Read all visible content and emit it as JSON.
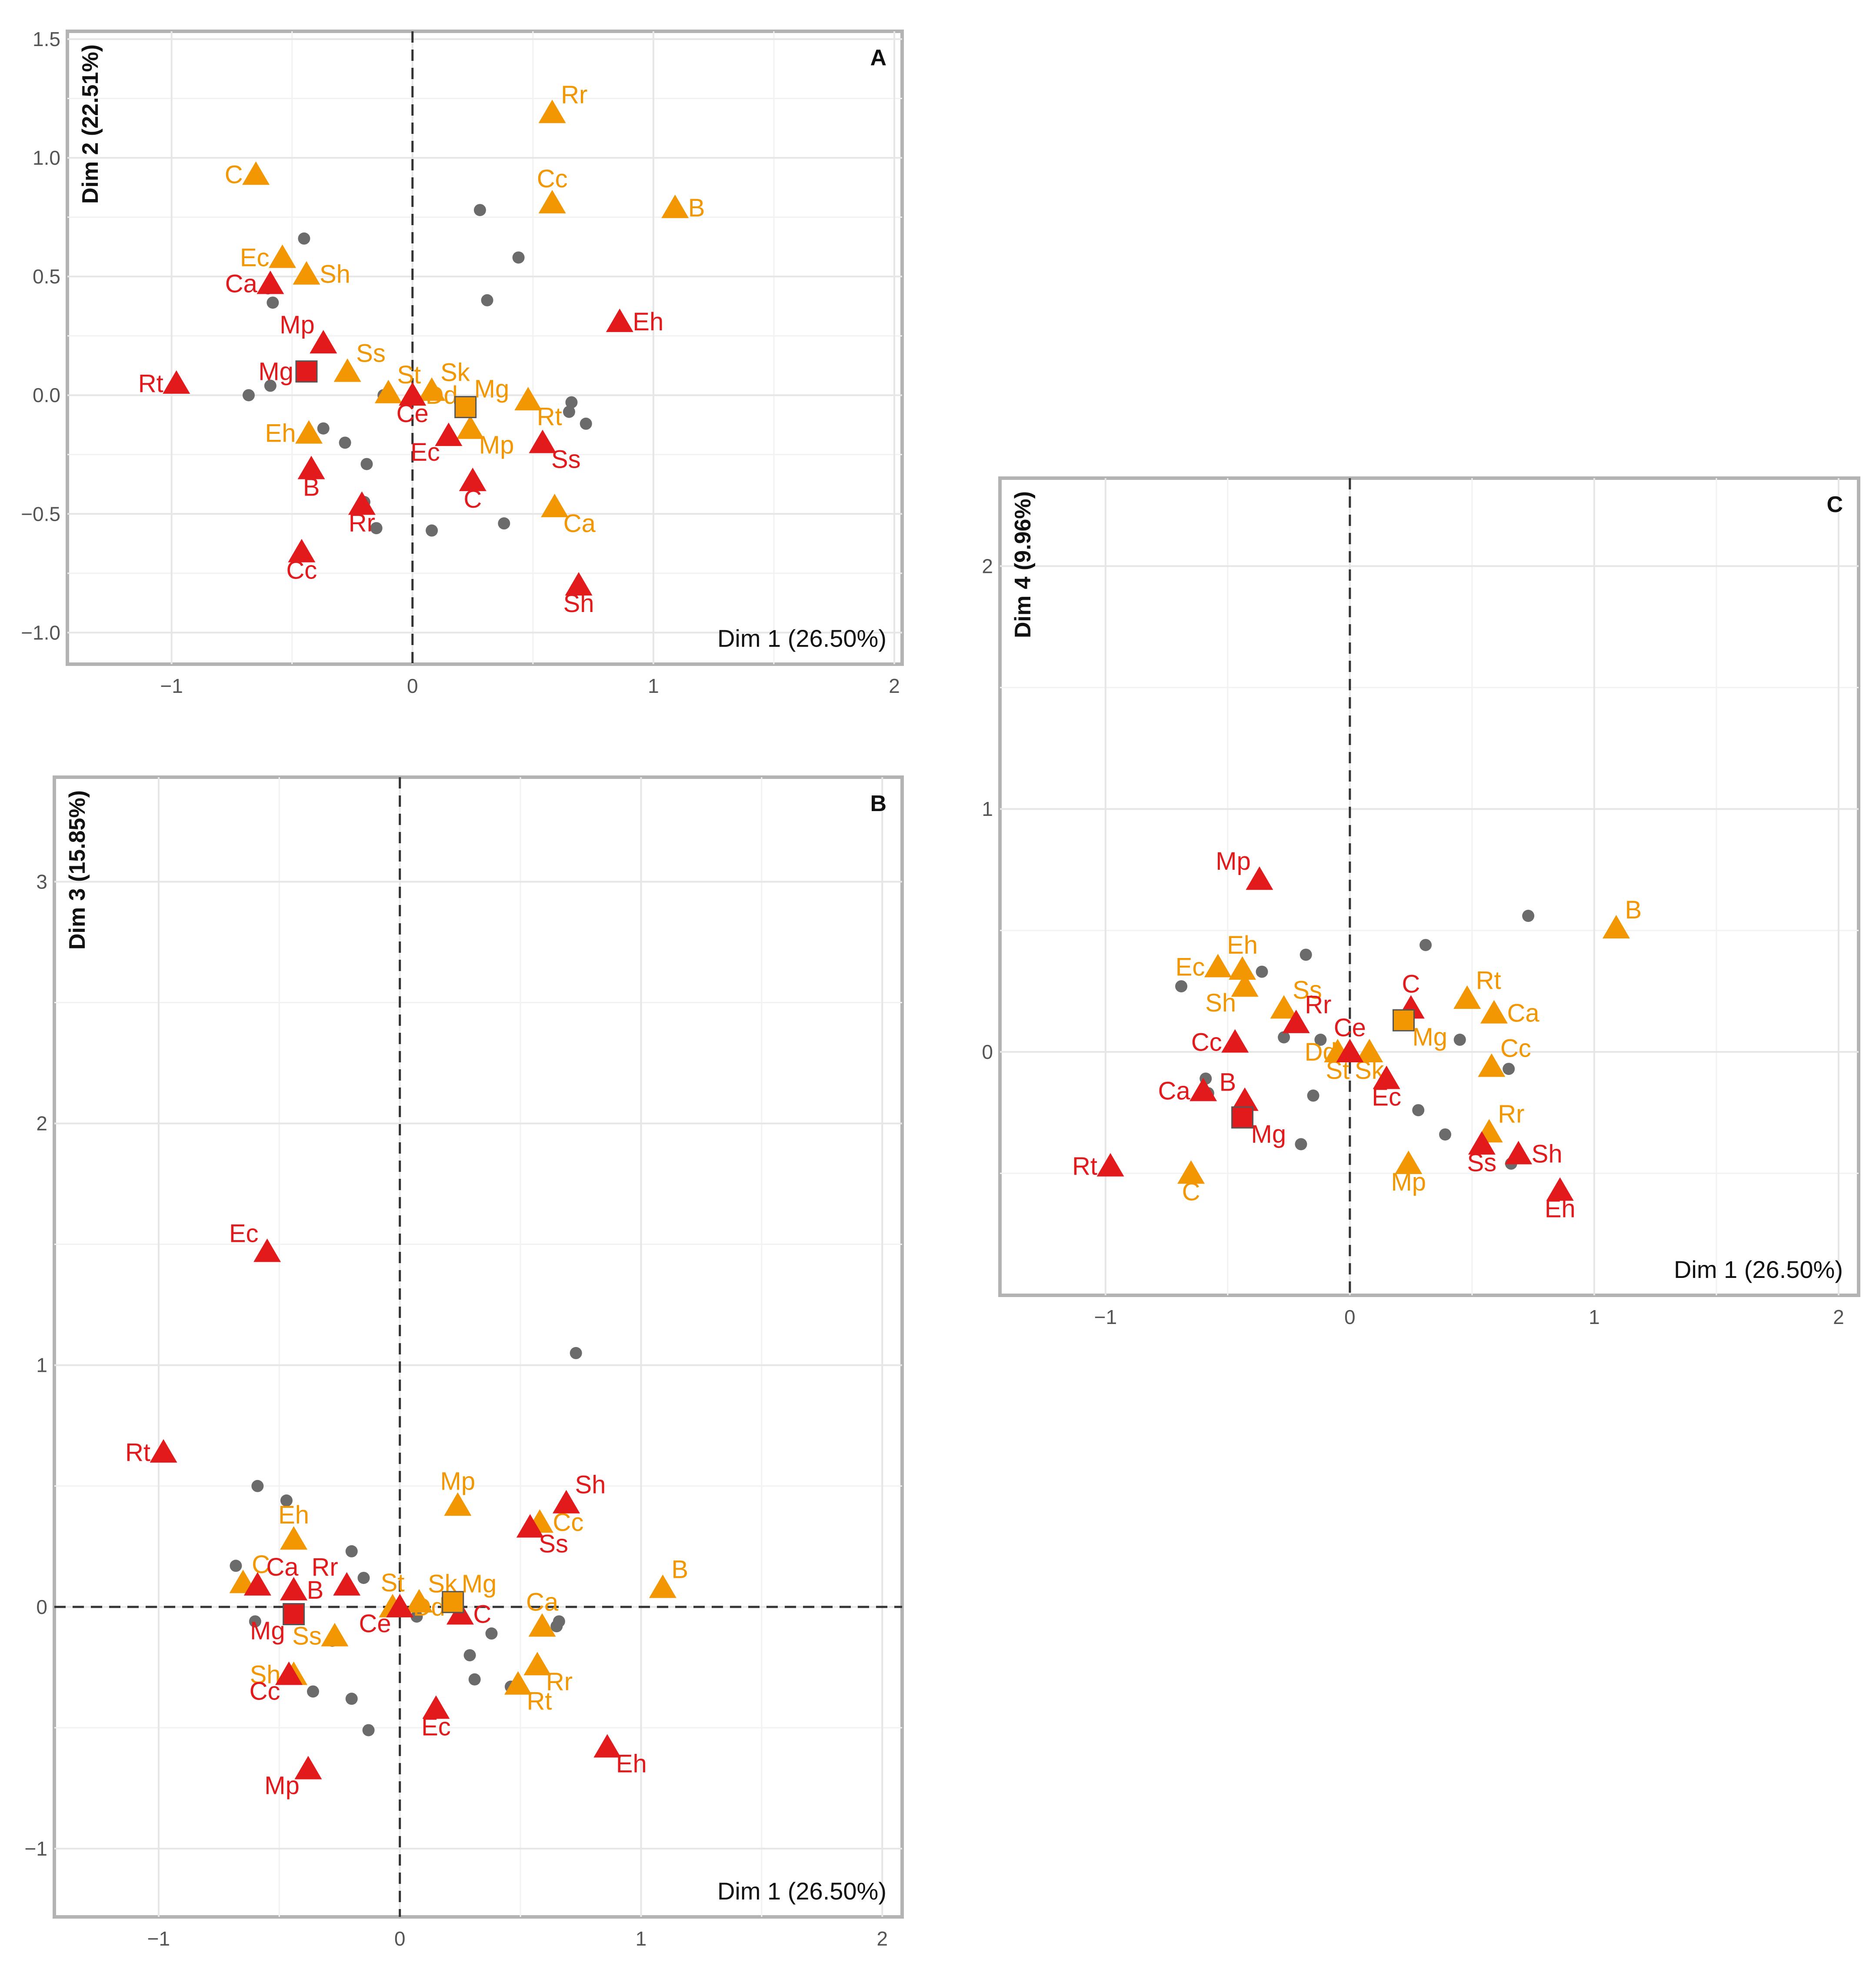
{
  "colors": {
    "red": "#e31a1c",
    "orange": "#f29602",
    "gray": "#6b6b6b"
  },
  "chart_data": [
    {
      "type": "scatter",
      "panel": "A",
      "xlabel": "Dim 1 (26.50%)",
      "ylabel": "Dim 2 (22.51%)",
      "xlim": [
        -1.4,
        2.0
      ],
      "ylim": [
        -1.1,
        1.5
      ],
      "xticks": [
        -1,
        0,
        1,
        2
      ],
      "xtick_labels": [
        "−1",
        "0",
        "1",
        "2"
      ],
      "yticks": [
        -1.0,
        -0.5,
        0.0,
        0.5,
        1.0,
        1.5
      ],
      "ytick_labels": [
        "−1.0",
        "−0.5",
        "0.0",
        "0.5",
        "1.0",
        "1.5"
      ],
      "zero_lines": [
        "vertical"
      ],
      "series": [
        {
          "name": "red",
          "marker": "triangle",
          "color": "#e31a1c",
          "points": [
            {
              "x": -0.98,
              "y": 0.05,
              "label": "Rt",
              "pos": "w"
            },
            {
              "x": -0.59,
              "y": 0.47,
              "label": "Ca",
              "pos": "w"
            },
            {
              "x": -0.37,
              "y": 0.22,
              "label": "Mp",
              "pos": "nw"
            },
            {
              "x": -0.42,
              "y": -0.31,
              "label": "B",
              "pos": "s"
            },
            {
              "x": -0.21,
              "y": -0.46,
              "label": "Rr",
              "pos": "s"
            },
            {
              "x": -0.46,
              "y": -0.66,
              "label": "Cc",
              "pos": "s"
            },
            {
              "x": 0.0,
              "y": 0.0,
              "label": "Ce",
              "pos": "s"
            },
            {
              "x": 0.15,
              "y": -0.17,
              "label": "Ec",
              "pos": "sw"
            },
            {
              "x": 0.25,
              "y": -0.36,
              "label": "C",
              "pos": "s"
            },
            {
              "x": 0.54,
              "y": -0.2,
              "label": "Ss",
              "pos": "se"
            },
            {
              "x": 0.69,
              "y": -0.8,
              "label": "Sh",
              "pos": "s"
            },
            {
              "x": 0.86,
              "y": 0.31,
              "label": "Eh",
              "pos": "e"
            }
          ]
        },
        {
          "name": "orange",
          "marker": "triangle",
          "color": "#f29602",
          "points": [
            {
              "x": -0.65,
              "y": 0.93,
              "label": "C",
              "pos": "w"
            },
            {
              "x": -0.54,
              "y": 0.58,
              "label": "Ec",
              "pos": "w"
            },
            {
              "x": -0.44,
              "y": 0.51,
              "label": "Sh",
              "pos": "e"
            },
            {
              "x": -0.27,
              "y": 0.1,
              "label": "Ss",
              "pos": "ne"
            },
            {
              "x": -0.1,
              "y": 0.01,
              "label": "St",
              "pos": "ne"
            },
            {
              "x": 0.0,
              "y": 0.0,
              "label": "Dd",
              "pos": "e"
            },
            {
              "x": 0.08,
              "y": 0.02,
              "label": "Sk",
              "pos": "ne"
            },
            {
              "x": -0.43,
              "y": -0.16,
              "label": "Eh",
              "pos": "w"
            },
            {
              "x": 0.24,
              "y": -0.14,
              "label": "Mp",
              "pos": "se"
            },
            {
              "x": 0.48,
              "y": -0.02,
              "label": "Rt",
              "pos": "se"
            },
            {
              "x": 0.58,
              "y": 1.19,
              "label": "Rr",
              "pos": "ne"
            },
            {
              "x": 0.58,
              "y": 0.81,
              "label": "Cc",
              "pos": "n"
            },
            {
              "x": 1.09,
              "y": 0.79,
              "label": "B",
              "pos": "e"
            },
            {
              "x": 0.59,
              "y": -0.47,
              "label": "Ca",
              "pos": "se"
            }
          ]
        },
        {
          "name": "centroids",
          "marker": "square",
          "points": [
            {
              "x": -0.44,
              "y": 0.1,
              "label": "Mg",
              "color": "#e31a1c",
              "pos": "w"
            },
            {
              "x": 0.22,
              "y": -0.05,
              "label": "Mg",
              "color": "#f29602",
              "pos": "ne"
            }
          ]
        },
        {
          "name": "individuals",
          "marker": "dot",
          "color": "#6b6b6b",
          "points": [
            {
              "x": -0.45,
              "y": 0.66
            },
            {
              "x": -0.6,
              "y": 0.45
            },
            {
              "x": -0.58,
              "y": 0.39
            },
            {
              "x": -0.59,
              "y": 0.04
            },
            {
              "x": -0.68,
              "y": 0.0
            },
            {
              "x": -0.37,
              "y": -0.14
            },
            {
              "x": -0.28,
              "y": -0.2
            },
            {
              "x": -0.19,
              "y": -0.29
            },
            {
              "x": -0.2,
              "y": -0.45
            },
            {
              "x": -0.15,
              "y": -0.56
            },
            {
              "x": -0.12,
              "y": 0.0
            },
            {
              "x": 0.28,
              "y": 0.78
            },
            {
              "x": 0.44,
              "y": 0.58
            },
            {
              "x": 0.31,
              "y": 0.4
            },
            {
              "x": 0.66,
              "y": -0.03
            },
            {
              "x": 0.65,
              "y": -0.07
            },
            {
              "x": 0.72,
              "y": -0.12
            },
            {
              "x": 0.08,
              "y": -0.57
            },
            {
              "x": 0.38,
              "y": -0.54
            }
          ]
        }
      ]
    },
    {
      "type": "scatter",
      "panel": "B",
      "xlabel": "Dim 1 (26.50%)",
      "ylabel": "Dim 3 (15.85%)",
      "xlim": [
        -1.4,
        2.05
      ],
      "ylim": [
        -1.25,
        3.4
      ],
      "xticks": [
        -1,
        0,
        1,
        2
      ],
      "xtick_labels": [
        "−1",
        "0",
        "1",
        "2"
      ],
      "yticks": [
        -1,
        0,
        1,
        2,
        3
      ],
      "ytick_labels": [
        "−1",
        "0",
        "1",
        "2",
        "3"
      ],
      "zero_lines": [
        "vertical",
        "horizontal"
      ],
      "series": [
        {
          "name": "red",
          "marker": "triangle",
          "color": "#e31a1c",
          "points": [
            {
              "x": -0.55,
              "y": 1.47,
              "label": "Ec",
              "pos": "nw"
            },
            {
              "x": -0.98,
              "y": 0.64,
              "label": "Rt",
              "pos": "w"
            },
            {
              "x": -0.59,
              "y": 0.09,
              "label": "Ca",
              "pos": "ne"
            },
            {
              "x": -0.44,
              "y": 0.07,
              "label": "B",
              "pos": "e"
            },
            {
              "x": -0.22,
              "y": 0.09,
              "label": "Rr",
              "pos": "nw"
            },
            {
              "x": -0.46,
              "y": -0.28,
              "label": "Cc",
              "pos": "sw"
            },
            {
              "x": -0.38,
              "y": -0.67,
              "label": "Mp",
              "pos": "sw"
            },
            {
              "x": 0.0,
              "y": 0.0,
              "label": "Ce",
              "pos": "sw"
            },
            {
              "x": 0.25,
              "y": -0.03,
              "label": "C",
              "pos": "e"
            },
            {
              "x": 0.15,
              "y": -0.42,
              "label": "Ec",
              "pos": "s"
            },
            {
              "x": 0.54,
              "y": 0.33,
              "label": "Ss",
              "pos": "se"
            },
            {
              "x": 0.69,
              "y": 0.43,
              "label": "Sh",
              "pos": "ne"
            },
            {
              "x": 0.86,
              "y": -0.58,
              "label": "Eh",
              "pos": "se"
            }
          ]
        },
        {
          "name": "orange",
          "marker": "triangle",
          "color": "#f29602",
          "points": [
            {
              "x": -0.44,
              "y": 0.28,
              "label": "Eh",
              "pos": "n"
            },
            {
              "x": -0.65,
              "y": 0.1,
              "label": "C",
              "pos": "ne"
            },
            {
              "x": -0.27,
              "y": -0.12,
              "label": "Ss",
              "pos": "w"
            },
            {
              "x": -0.44,
              "y": -0.28,
              "label": "Sh",
              "pos": "w"
            },
            {
              "x": -0.03,
              "y": 0.0,
              "label": "St",
              "pos": "n"
            },
            {
              "x": 0.0,
              "y": 0.0,
              "label": "Dd",
              "pos": "e"
            },
            {
              "x": 0.08,
              "y": 0.02,
              "label": "Sk",
              "pos": "ne"
            },
            {
              "x": 0.24,
              "y": 0.42,
              "label": "Mp",
              "pos": "n"
            },
            {
              "x": 0.58,
              "y": 0.35,
              "label": "Cc",
              "pos": "e"
            },
            {
              "x": 0.59,
              "y": -0.08,
              "label": "Ca",
              "pos": "n"
            },
            {
              "x": 0.57,
              "y": -0.24,
              "label": "Rr",
              "pos": "se"
            },
            {
              "x": 0.49,
              "y": -0.32,
              "label": "Rt",
              "pos": "se"
            },
            {
              "x": 1.09,
              "y": 0.08,
              "label": "B",
              "pos": "ne"
            }
          ]
        },
        {
          "name": "centroids",
          "marker": "square",
          "points": [
            {
              "x": -0.44,
              "y": -0.03,
              "label": "Mg",
              "color": "#e31a1c",
              "pos": "sw"
            },
            {
              "x": 0.22,
              "y": 0.02,
              "label": "Mg",
              "color": "#f29602",
              "pos": "ne"
            }
          ]
        },
        {
          "name": "individuals",
          "marker": "dot",
          "color": "#6b6b6b",
          "points": [
            {
              "x": -0.59,
              "y": 0.5
            },
            {
              "x": -0.47,
              "y": 0.44
            },
            {
              "x": -0.68,
              "y": 0.17
            },
            {
              "x": -0.6,
              "y": -0.06
            },
            {
              "x": -0.36,
              "y": -0.35
            },
            {
              "x": -0.28,
              "y": -0.14
            },
            {
              "x": -0.2,
              "y": -0.38
            },
            {
              "x": -0.13,
              "y": -0.51
            },
            {
              "x": -0.2,
              "y": 0.23
            },
            {
              "x": -0.15,
              "y": 0.12
            },
            {
              "x": 0.73,
              "y": 1.05
            },
            {
              "x": 0.66,
              "y": -0.06
            },
            {
              "x": 0.65,
              "y": -0.08
            },
            {
              "x": 0.07,
              "y": -0.04
            },
            {
              "x": 0.29,
              "y": -0.2
            },
            {
              "x": 0.31,
              "y": -0.3
            },
            {
              "x": 0.38,
              "y": -0.11
            },
            {
              "x": 0.46,
              "y": -0.33
            }
          ]
        }
      ]
    },
    {
      "type": "scatter",
      "panel": "C",
      "xlabel": "Dim 1 (26.50%)",
      "ylabel": "Dim 4 (9.96%)",
      "xlim": [
        -1.4,
        2.05
      ],
      "ylim": [
        -0.97,
        2.33
      ],
      "xticks": [
        -1,
        0,
        1,
        2
      ],
      "xtick_labels": [
        "−1",
        "0",
        "1",
        "2"
      ],
      "yticks": [
        0,
        1,
        2
      ],
      "ytick_labels": [
        "0",
        "1",
        "2"
      ],
      "zero_lines": [
        "vertical"
      ],
      "series": [
        {
          "name": "red",
          "marker": "triangle",
          "color": "#e31a1c",
          "points": [
            {
              "x": -0.37,
              "y": 0.71,
              "label": "Mp",
              "pos": "nw"
            },
            {
              "x": -0.47,
              "y": 0.04,
              "label": "Cc",
              "pos": "w"
            },
            {
              "x": -0.22,
              "y": 0.12,
              "label": "Rr",
              "pos": "ne"
            },
            {
              "x": 0.25,
              "y": 0.18,
              "label": "C",
              "pos": "n"
            },
            {
              "x": 0.0,
              "y": 0.0,
              "label": "Ce",
              "pos": "n"
            },
            {
              "x": 0.15,
              "y": -0.11,
              "label": "Ec",
              "pos": "s"
            },
            {
              "x": -0.6,
              "y": -0.16,
              "label": "Ca",
              "pos": "w"
            },
            {
              "x": -0.43,
              "y": -0.2,
              "label": "B",
              "pos": "nw"
            },
            {
              "x": -0.98,
              "y": -0.47,
              "label": "Rt",
              "pos": "w"
            },
            {
              "x": 0.54,
              "y": -0.38,
              "label": "Ss",
              "pos": "s"
            },
            {
              "x": 0.69,
              "y": -0.42,
              "label": "Sh",
              "pos": "e"
            },
            {
              "x": 0.86,
              "y": -0.57,
              "label": "Eh",
              "pos": "s"
            }
          ]
        },
        {
          "name": "orange",
          "marker": "triangle",
          "color": "#f29602",
          "points": [
            {
              "x": -0.54,
              "y": 0.35,
              "label": "Ec",
              "pos": "w"
            },
            {
              "x": -0.44,
              "y": 0.34,
              "label": "Eh",
              "pos": "n"
            },
            {
              "x": -0.43,
              "y": 0.27,
              "label": "Sh",
              "pos": "sw"
            },
            {
              "x": -0.27,
              "y": 0.18,
              "label": "Ss",
              "pos": "ne"
            },
            {
              "x": 0.0,
              "y": 0.0,
              "label": "Dd",
              "pos": "w"
            },
            {
              "x": -0.05,
              "y": 0.0,
              "label": "St",
              "pos": "s"
            },
            {
              "x": 0.08,
              "y": 0.0,
              "label": "Sk",
              "pos": "s"
            },
            {
              "x": 0.48,
              "y": 0.22,
              "label": "Rt",
              "pos": "ne"
            },
            {
              "x": 0.59,
              "y": 0.16,
              "label": "Ca",
              "pos": "e"
            },
            {
              "x": 0.58,
              "y": -0.06,
              "label": "Cc",
              "pos": "ne"
            },
            {
              "x": 0.57,
              "y": -0.33,
              "label": "Rr",
              "pos": "ne"
            },
            {
              "x": 0.24,
              "y": -0.46,
              "label": "Mp",
              "pos": "s"
            },
            {
              "x": -0.65,
              "y": -0.5,
              "label": "C",
              "pos": "s"
            },
            {
              "x": 1.09,
              "y": 0.51,
              "label": "B",
              "pos": "ne"
            }
          ]
        },
        {
          "name": "centroids",
          "marker": "square",
          "points": [
            {
              "x": -0.44,
              "y": -0.27,
              "label": "Mg",
              "color": "#e31a1c",
              "pos": "se"
            },
            {
              "x": 0.22,
              "y": 0.13,
              "label": "Mg",
              "color": "#f29602",
              "pos": "se"
            }
          ]
        },
        {
          "name": "individuals",
          "marker": "dot",
          "color": "#6b6b6b",
          "points": [
            {
              "x": -0.69,
              "y": 0.27
            },
            {
              "x": -0.36,
              "y": 0.33
            },
            {
              "x": -0.18,
              "y": 0.4
            },
            {
              "x": 0.31,
              "y": 0.44
            },
            {
              "x": 0.73,
              "y": 0.56
            },
            {
              "x": -0.59,
              "y": -0.11
            },
            {
              "x": -0.58,
              "y": -0.17
            },
            {
              "x": -0.27,
              "y": 0.06
            },
            {
              "x": -0.12,
              "y": 0.05
            },
            {
              "x": -0.15,
              "y": -0.18
            },
            {
              "x": 0.07,
              "y": -0.02
            },
            {
              "x": 0.28,
              "y": -0.24
            },
            {
              "x": 0.39,
              "y": -0.34
            },
            {
              "x": -0.2,
              "y": -0.38
            },
            {
              "x": 0.45,
              "y": 0.05
            },
            {
              "x": 0.65,
              "y": -0.07
            },
            {
              "x": 0.66,
              "y": -0.46
            }
          ]
        }
      ]
    }
  ]
}
